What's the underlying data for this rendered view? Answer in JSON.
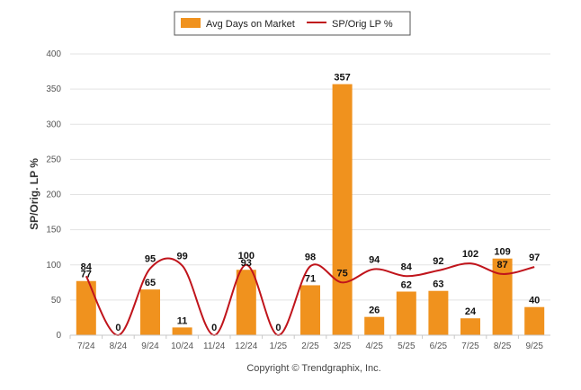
{
  "chart_data": {
    "type": "bar+line",
    "categories": [
      "7/24",
      "8/24",
      "9/24",
      "10/24",
      "11/24",
      "12/24",
      "1/25",
      "2/25",
      "3/25",
      "4/25",
      "5/25",
      "6/25",
      "7/25",
      "8/25",
      "9/25"
    ],
    "series": [
      {
        "name": "Avg Days on Market",
        "type": "bar",
        "color": "#f0921e",
        "values": [
          77,
          0,
          65,
          11,
          0,
          93,
          0,
          71,
          357,
          26,
          62,
          63,
          24,
          109,
          40
        ]
      },
      {
        "name": "SP/Orig LP %",
        "type": "line",
        "color": "#c0141b",
        "values": [
          84,
          0,
          95,
          99,
          0,
          100,
          0,
          98,
          75,
          94,
          84,
          92,
          102,
          87,
          97
        ]
      }
    ],
    "ylabel": "SP/Orig. LP %",
    "ylim": [
      0,
      400
    ],
    "yticks": [
      0,
      50,
      100,
      150,
      200,
      250,
      300,
      350,
      400
    ],
    "grid": true,
    "legend": "top-center",
    "footer": "Copyright © Trendgraphix, Inc."
  }
}
